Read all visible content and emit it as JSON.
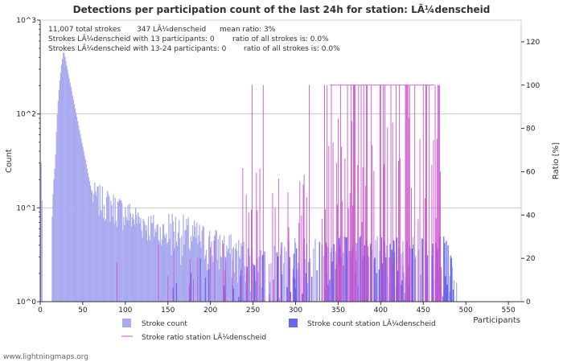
{
  "chart_data": {
    "type": "bar",
    "title": "Detections per participation count of the last 24h for station: LÃ¼denscheid",
    "xlabel": "Participants",
    "ylabel": "Count",
    "y2label": "Ratio [%]",
    "xlim": [
      0,
      565
    ],
    "ylim_log10": [
      0,
      3
    ],
    "y2lim": [
      0,
      130
    ],
    "x_ticks": [
      0,
      50,
      100,
      150,
      200,
      250,
      300,
      350,
      400,
      450,
      500,
      550
    ],
    "y_ticks": [
      {
        "label": "10^0",
        "exp": 0
      },
      {
        "label": "10^1",
        "exp": 1
      },
      {
        "label": "10^2",
        "exp": 2
      },
      {
        "label": "10^3",
        "exp": 3
      }
    ],
    "y2_ticks": [
      0,
      20,
      40,
      60,
      80,
      100,
      120
    ],
    "info_lines": [
      [
        "11,007 total strokes",
        "347 LÃ¼denscheid",
        "mean ratio: 3%"
      ],
      [
        "Strokes LÃ¼denscheid with 13 participants: 0",
        "ratio of all strokes is: 0.0%"
      ],
      [
        "Strokes LÃ¼denscheid with 13-24 participants: 0",
        "ratio of all strokes is: 0.0%"
      ]
    ],
    "legend": [
      {
        "label": "Stroke count",
        "kind": "box",
        "color": "#aaaaf0"
      },
      {
        "label": "Stroke count station LÃ¼denscheid",
        "kind": "box",
        "color": "#6666ee"
      },
      {
        "label": "Stroke ratio station LÃ¼denscheid",
        "kind": "line",
        "color": "#cc55cc"
      }
    ],
    "colors": {
      "all": "#aaaaf0",
      "station": "#6666ee",
      "ratio": "#cc55cc",
      "grid": "#cccccc"
    },
    "all_strokes_peak": {
      "participants": 27,
      "count": 500
    },
    "station_first_participants": 150
  },
  "footer": "www.lightningmaps.org"
}
